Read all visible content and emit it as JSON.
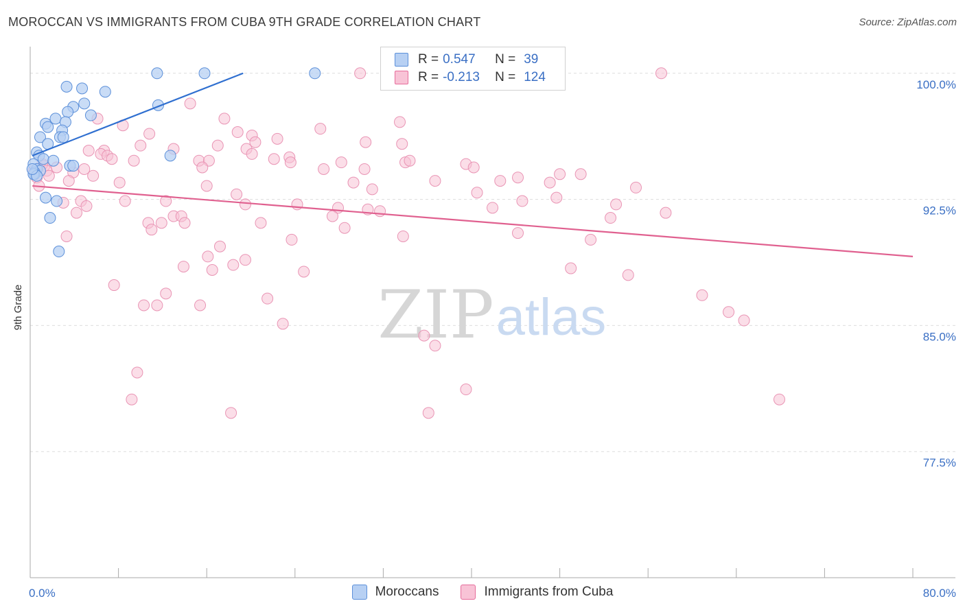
{
  "title": "MOROCCAN VS IMMIGRANTS FROM CUBA 9TH GRADE CORRELATION CHART",
  "source": "Source: ZipAtlas.com",
  "watermark": {
    "zip": "ZIP",
    "atlas": "atlas"
  },
  "legend": {
    "r_label": "R =",
    "n_label": "N =",
    "series": [
      {
        "name": "Moroccans",
        "r": "0.547",
        "n": "39",
        "color": "#5b8fd9",
        "fill": "#b7d0f3"
      },
      {
        "name": "Immigrants from Cuba",
        "r": "-0.213",
        "n": "124",
        "color": "#e66b9a",
        "fill": "#f8c3d6"
      }
    ]
  },
  "chart_data": {
    "type": "scatter",
    "title": "MOROCCAN VS IMMIGRANTS FROM CUBA 9TH GRADE CORRELATION CHART",
    "xlabel": "",
    "ylabel": "9th Grade",
    "xlim": [
      0,
      80
    ],
    "ylim": [
      70,
      101.5
    ],
    "x_tick_labels": [
      "0.0%",
      "80.0%"
    ],
    "y_ticks": [
      77.5,
      85.0,
      92.5,
      100.0
    ],
    "y_tick_labels": [
      "77.5%",
      "85.0%",
      "92.5%",
      "100.0%"
    ],
    "grid": true,
    "legend_position": "top-center",
    "series": [
      {
        "name": "Moroccans",
        "color": "#5b8fd9",
        "trend": {
          "x": [
            0.2,
            19.3
          ],
          "y": [
            95.1,
            100.0
          ]
        },
        "points": [
          [
            11.5,
            100.0
          ],
          [
            15.8,
            100.0
          ],
          [
            25.8,
            100.0
          ],
          [
            3.3,
            99.2
          ],
          [
            4.7,
            99.1
          ],
          [
            6.8,
            98.9
          ],
          [
            4.9,
            98.2
          ],
          [
            11.6,
            98.1
          ],
          [
            3.9,
            98.0
          ],
          [
            3.4,
            97.7
          ],
          [
            5.5,
            97.5
          ],
          [
            2.3,
            97.3
          ],
          [
            3.2,
            97.1
          ],
          [
            1.4,
            97.0
          ],
          [
            1.6,
            96.8
          ],
          [
            2.9,
            96.6
          ],
          [
            0.9,
            96.2
          ],
          [
            2.7,
            96.2
          ],
          [
            3.0,
            96.2
          ],
          [
            1.6,
            95.8
          ],
          [
            0.6,
            95.3
          ],
          [
            0.8,
            95.1
          ],
          [
            12.7,
            95.1
          ],
          [
            1.2,
            94.9
          ],
          [
            2.1,
            94.8
          ],
          [
            0.3,
            94.6
          ],
          [
            3.6,
            94.5
          ],
          [
            3.9,
            94.5
          ],
          [
            0.6,
            94.3
          ],
          [
            0.9,
            94.2
          ],
          [
            0.4,
            94.1
          ],
          [
            0.4,
            94.0
          ],
          [
            0.3,
            94.0
          ],
          [
            0.6,
            93.9
          ],
          [
            1.4,
            92.6
          ],
          [
            2.4,
            92.4
          ],
          [
            1.8,
            91.4
          ],
          [
            2.6,
            89.4
          ],
          [
            0.2,
            94.3
          ]
        ]
      },
      {
        "name": "Immigrants from Cuba",
        "color": "#e66b9a",
        "trend": {
          "x": [
            0.2,
            80.0
          ],
          "y": [
            93.3,
            89.1
          ]
        },
        "points": [
          [
            29.9,
            100.0
          ],
          [
            57.2,
            100.0
          ],
          [
            14.5,
            98.2
          ],
          [
            6.1,
            97.3
          ],
          [
            17.6,
            97.3
          ],
          [
            33.5,
            97.1
          ],
          [
            8.4,
            96.9
          ],
          [
            26.3,
            96.7
          ],
          [
            18.8,
            96.5
          ],
          [
            10.8,
            96.4
          ],
          [
            20.1,
            96.3
          ],
          [
            22.4,
            96.1
          ],
          [
            20.4,
            95.9
          ],
          [
            30.4,
            95.9
          ],
          [
            10.0,
            95.7
          ],
          [
            17.0,
            95.7
          ],
          [
            13.0,
            95.5
          ],
          [
            5.3,
            95.4
          ],
          [
            6.7,
            95.4
          ],
          [
            19.6,
            95.5
          ],
          [
            6.4,
            95.2
          ],
          [
            7.0,
            95.1
          ],
          [
            20.1,
            95.2
          ],
          [
            23.5,
            95.0
          ],
          [
            22.1,
            94.9
          ],
          [
            7.4,
            94.9
          ],
          [
            9.4,
            94.8
          ],
          [
            15.3,
            94.8
          ],
          [
            16.2,
            94.8
          ],
          [
            23.6,
            94.7
          ],
          [
            28.2,
            94.7
          ],
          [
            34.0,
            94.7
          ],
          [
            34.4,
            94.8
          ],
          [
            39.5,
            94.6
          ],
          [
            40.2,
            94.4
          ],
          [
            26.6,
            94.3
          ],
          [
            30.3,
            94.3
          ],
          [
            15.6,
            94.4
          ],
          [
            48.0,
            94.0
          ],
          [
            49.9,
            94.0
          ],
          [
            4.9,
            94.3
          ],
          [
            3.9,
            94.1
          ],
          [
            5.7,
            93.9
          ],
          [
            44.2,
            93.8
          ],
          [
            42.6,
            93.6
          ],
          [
            36.7,
            93.6
          ],
          [
            47.1,
            93.5
          ],
          [
            8.1,
            93.5
          ],
          [
            3.5,
            93.6
          ],
          [
            16.0,
            93.3
          ],
          [
            29.3,
            93.5
          ],
          [
            31.0,
            93.1
          ],
          [
            54.9,
            93.2
          ],
          [
            40.5,
            92.9
          ],
          [
            18.7,
            92.8
          ],
          [
            47.7,
            92.6
          ],
          [
            44.6,
            92.4
          ],
          [
            12.3,
            92.4
          ],
          [
            4.6,
            92.4
          ],
          [
            8.6,
            92.4
          ],
          [
            3.0,
            92.3
          ],
          [
            19.5,
            92.2
          ],
          [
            24.2,
            92.2
          ],
          [
            53.1,
            92.2
          ],
          [
            41.9,
            92.0
          ],
          [
            27.9,
            92.0
          ],
          [
            30.6,
            91.9
          ],
          [
            31.7,
            91.8
          ],
          [
            57.6,
            91.7
          ],
          [
            1.3,
            94.5
          ],
          [
            5.1,
            92.1
          ],
          [
            4.2,
            91.7
          ],
          [
            13.0,
            91.5
          ],
          [
            13.7,
            91.5
          ],
          [
            27.4,
            91.5
          ],
          [
            52.6,
            91.4
          ],
          [
            10.7,
            91.1
          ],
          [
            11.9,
            91.1
          ],
          [
            14.0,
            91.1
          ],
          [
            20.9,
            91.1
          ],
          [
            11.0,
            90.7
          ],
          [
            28.5,
            90.8
          ],
          [
            44.2,
            90.5
          ],
          [
            33.8,
            90.3
          ],
          [
            3.3,
            90.3
          ],
          [
            23.7,
            90.1
          ],
          [
            50.8,
            90.1
          ],
          [
            17.2,
            89.7
          ],
          [
            16.1,
            89.1
          ],
          [
            19.5,
            88.9
          ],
          [
            18.4,
            88.6
          ],
          [
            13.9,
            88.5
          ],
          [
            49.0,
            88.4
          ],
          [
            16.5,
            88.3
          ],
          [
            24.8,
            88.2
          ],
          [
            54.2,
            88.0
          ],
          [
            7.6,
            87.4
          ],
          [
            12.3,
            86.9
          ],
          [
            60.9,
            86.8
          ],
          [
            21.5,
            86.6
          ],
          [
            10.3,
            86.2
          ],
          [
            11.5,
            86.2
          ],
          [
            15.4,
            86.2
          ],
          [
            63.3,
            85.8
          ],
          [
            64.7,
            85.3
          ],
          [
            22.9,
            85.1
          ],
          [
            35.7,
            84.4
          ],
          [
            36.7,
            83.8
          ],
          [
            9.7,
            82.2
          ],
          [
            39.5,
            81.2
          ],
          [
            9.2,
            80.6
          ],
          [
            67.9,
            80.6
          ],
          [
            18.2,
            79.8
          ],
          [
            36.1,
            79.8
          ],
          [
            0.3,
            94.2
          ],
          [
            0.6,
            93.8
          ],
          [
            1.1,
            94.6
          ],
          [
            1.5,
            94.2
          ],
          [
            1.7,
            93.9
          ],
          [
            2.4,
            94.4
          ],
          [
            0.8,
            93.3
          ],
          [
            33.7,
            95.8
          ]
        ]
      }
    ]
  }
}
